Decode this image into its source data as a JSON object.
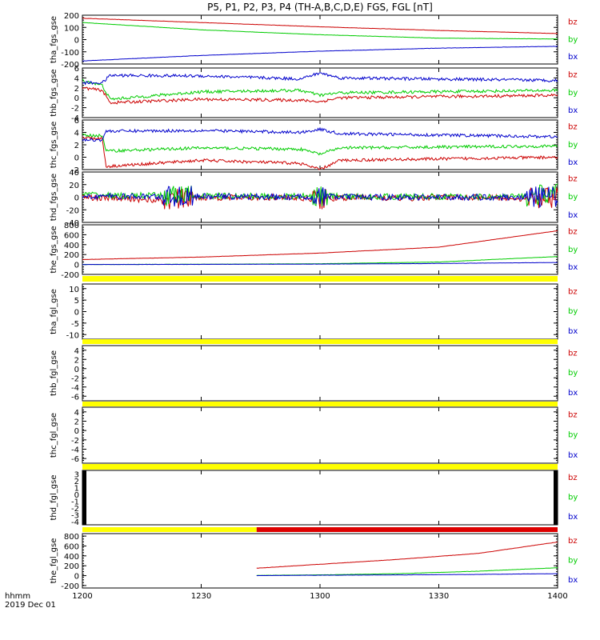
{
  "title": "P5, P1, P2, P3, P4 (TH-A,B,C,D,E) FGS, FGL [nT]",
  "time_axis": {
    "label_1": "hhmm",
    "label_2": "2019 Dec 01",
    "ticks": [
      "1200",
      "1230",
      "1300",
      "1330",
      "1400"
    ],
    "range_minutes": [
      0,
      120
    ]
  },
  "components": [
    {
      "name": "bz",
      "color": "#cc0000"
    },
    {
      "name": "by",
      "color": "#00cc00"
    },
    {
      "name": "bx",
      "color": "#0000cc"
    }
  ],
  "status_bars": {
    "yellow": "#ffff00",
    "red": "#dd0000",
    "bars": [
      {
        "after_panel": 5,
        "segments": [
          {
            "color": "yellow",
            "from": 0,
            "to": 120
          }
        ]
      },
      {
        "after_panel": 6,
        "segments": [
          {
            "color": "yellow",
            "from": 0,
            "to": 120
          }
        ]
      },
      {
        "after_panel": 7,
        "segments": [
          {
            "color": "yellow",
            "from": 0,
            "to": 120
          }
        ]
      },
      {
        "after_panel": 8,
        "segments": [
          {
            "color": "yellow",
            "from": 0,
            "to": 120
          }
        ]
      },
      {
        "after_panel": 9,
        "segments": [
          {
            "color": "yellow",
            "from": 0,
            "to": 44
          },
          {
            "color": "red",
            "from": 44,
            "to": 120
          }
        ]
      }
    ]
  },
  "chart_data": [
    {
      "type": "line",
      "ylabel": "tha_fgs_gse",
      "ylim": [
        -200,
        200
      ],
      "ytick_labels": [
        "-200",
        "-100",
        "0",
        "100",
        "200"
      ],
      "series": [
        {
          "name": "bz",
          "x": [
            0,
            30,
            60,
            90,
            120
          ],
          "y": [
            175,
            140,
            105,
            75,
            50
          ]
        },
        {
          "name": "by",
          "x": [
            0,
            30,
            60,
            90,
            120
          ],
          "y": [
            140,
            80,
            40,
            12,
            5
          ]
        },
        {
          "name": "bx",
          "x": [
            0,
            30,
            60,
            90,
            120
          ],
          "y": [
            -175,
            -130,
            -95,
            -70,
            -55
          ]
        }
      ]
    },
    {
      "type": "line",
      "ylabel": "thb_fgs_gse",
      "ylim": [
        -4,
        6
      ],
      "ytick_labels": [
        "-4",
        "-2",
        "0",
        "2",
        "4",
        "6"
      ],
      "series": [
        {
          "name": "bz",
          "x": [
            0,
            5,
            7,
            30,
            55,
            60,
            65,
            120
          ],
          "y": [
            2,
            1.5,
            -1,
            -0.3,
            -0.5,
            -0.8,
            0,
            0.5
          ]
        },
        {
          "name": "by",
          "x": [
            0,
            5,
            7,
            30,
            55,
            60,
            65,
            120
          ],
          "y": [
            3.5,
            2.5,
            -0.3,
            1.2,
            1.5,
            0.5,
            1.0,
            1.5
          ]
        },
        {
          "name": "bx",
          "x": [
            0,
            5,
            7,
            30,
            55,
            60,
            65,
            120
          ],
          "y": [
            3,
            3,
            4.5,
            4.4,
            3.8,
            5.0,
            4.0,
            3.5
          ]
        }
      ]
    },
    {
      "type": "line",
      "ylabel": "thc_fgs_gse",
      "ylim": [
        -2,
        6
      ],
      "ytick_labels": [
        "-2",
        "0",
        "2",
        "4",
        "6"
      ],
      "series": [
        {
          "name": "bz",
          "x": [
            0,
            5,
            6,
            30,
            55,
            60,
            65,
            120
          ],
          "y": [
            3.2,
            3,
            -1.5,
            -0.5,
            -1,
            -2.0,
            -0.5,
            0
          ]
        },
        {
          "name": "by",
          "x": [
            0,
            5,
            6,
            30,
            55,
            60,
            65,
            120
          ],
          "y": [
            3.5,
            3.5,
            1,
            1.5,
            1.3,
            0.5,
            1.5,
            1.8
          ]
        },
        {
          "name": "bx",
          "x": [
            0,
            5,
            6,
            30,
            55,
            60,
            65,
            120
          ],
          "y": [
            2.8,
            2.8,
            4.2,
            4.3,
            4.0,
            4.5,
            3.8,
            3.3
          ]
        }
      ]
    },
    {
      "type": "line",
      "ylabel": "thd_fgs_gse",
      "ylim": [
        -40,
        40
      ],
      "ytick_labels": [
        "-40",
        "-20",
        "0",
        "20",
        "40"
      ],
      "series": [
        {
          "name": "bz",
          "x": [
            0,
            10,
            20,
            30,
            40,
            50,
            60,
            70,
            80,
            90,
            100,
            110,
            120
          ],
          "y": [
            0,
            -2,
            -5,
            0,
            -1,
            0,
            -3,
            0,
            -2,
            0,
            0,
            -2,
            0
          ]
        },
        {
          "name": "by",
          "x": [
            0,
            10,
            20,
            30,
            40,
            50,
            60,
            70,
            80,
            90,
            100,
            110,
            120
          ],
          "y": [
            5,
            2,
            3,
            2,
            2,
            1,
            2,
            1,
            1,
            1,
            1,
            1,
            5
          ]
        },
        {
          "name": "bx",
          "x": [
            0,
            10,
            20,
            30,
            40,
            50,
            60,
            70,
            80,
            90,
            100,
            110,
            120
          ],
          "y": [
            2,
            1,
            1,
            1,
            1,
            0,
            1,
            0,
            0,
            0,
            0,
            0,
            1
          ]
        }
      ]
    },
    {
      "type": "line",
      "ylabel": "the_fgs_gse",
      "ylim": [
        -200,
        800
      ],
      "ytick_labels": [
        "-200",
        "0",
        "200",
        "400",
        "600",
        "800"
      ],
      "series": [
        {
          "name": "bz",
          "x": [
            0,
            30,
            60,
            90,
            120
          ],
          "y": [
            100,
            150,
            230,
            350,
            680
          ]
        },
        {
          "name": "by",
          "x": [
            0,
            30,
            60,
            90,
            120
          ],
          "y": [
            0,
            5,
            15,
            50,
            160
          ]
        },
        {
          "name": "bx",
          "x": [
            0,
            30,
            60,
            90,
            120
          ],
          "y": [
            0,
            2,
            8,
            20,
            40
          ]
        }
      ]
    },
    {
      "type": "line",
      "ylabel": "tha_fgl_gse",
      "ylim": [
        -12,
        12
      ],
      "ytick_labels": [
        "-10",
        "-5",
        "0",
        "5",
        "10"
      ],
      "series": []
    },
    {
      "type": "line",
      "ylabel": "thb_fgl_gse",
      "ylim": [
        -7,
        5
      ],
      "ytick_labels": [
        "-6",
        "-4",
        "-2",
        "0",
        "2",
        "4"
      ],
      "series": []
    },
    {
      "type": "line",
      "ylabel": "thc_fgl_gse",
      "ylim": [
        -7,
        5
      ],
      "ytick_labels": [
        "-6",
        "-4",
        "-2",
        "0",
        "2",
        "4"
      ],
      "series": []
    },
    {
      "type": "line",
      "ylabel": "thd_fgl_gse",
      "ylim": [
        -4.5,
        3.5
      ],
      "ytick_labels": [
        "-4",
        "-3",
        "-2",
        "-1",
        "0",
        "1",
        "2",
        "3"
      ],
      "series": []
    },
    {
      "type": "line",
      "ylabel": "the_fgl_gse",
      "ylim": [
        -250,
        850
      ],
      "ytick_labels": [
        "-200",
        "0",
        "200",
        "400",
        "600",
        "800"
      ],
      "series": [
        {
          "name": "bz",
          "x": [
            44,
            60,
            80,
            100,
            120
          ],
          "y": [
            150,
            230,
            330,
            450,
            680
          ]
        },
        {
          "name": "by",
          "x": [
            44,
            60,
            80,
            100,
            120
          ],
          "y": [
            5,
            15,
            40,
            90,
            160
          ]
        },
        {
          "name": "bx",
          "x": [
            44,
            60,
            80,
            100,
            120
          ],
          "y": [
            0,
            8,
            15,
            25,
            40
          ]
        }
      ]
    }
  ]
}
